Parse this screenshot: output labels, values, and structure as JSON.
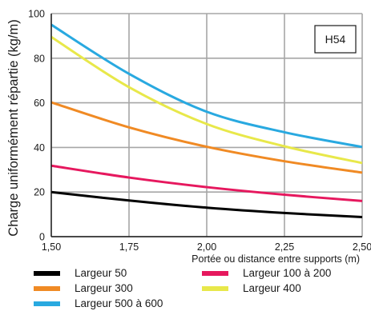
{
  "chart_data": {
    "type": "line",
    "title": "",
    "annotation": "H54",
    "xlabel": "Portée ou distance entre supports (m)",
    "ylabel": "Charge uniformément répartie (kg/m)",
    "xlim": [
      1.5,
      2.5
    ],
    "ylim": [
      0,
      100
    ],
    "xticks": [
      1.5,
      1.75,
      2.0,
      2.25,
      2.5
    ],
    "xtick_labels": [
      "1,50",
      "1,75",
      "2,00",
      "2,25",
      "2,50"
    ],
    "yticks": [
      0,
      20,
      40,
      60,
      80,
      100
    ],
    "ytick_labels": [
      "0",
      "20",
      "40",
      "60",
      "80",
      "100"
    ],
    "grid": true,
    "legend_position": "bottom",
    "x": [
      1.5,
      1.75,
      2.0,
      2.25,
      2.5
    ],
    "series": [
      {
        "name": "Largeur 50",
        "color": "#000000",
        "values": [
          20,
          16.2,
          13,
          10.6,
          8.8
        ]
      },
      {
        "name": "Largeur 100 à 200",
        "color": "#e6185e",
        "values": [
          31.8,
          26.5,
          22.2,
          18.8,
          16
        ]
      },
      {
        "name": "Largeur 300",
        "color": "#f08a24",
        "values": [
          60.2,
          49,
          40.3,
          33.8,
          28.7
        ]
      },
      {
        "name": "Largeur 400",
        "color": "#e8e84a",
        "values": [
          89.5,
          67,
          50.5,
          40.5,
          33
        ]
      },
      {
        "name": "Largeur 500 à 600",
        "color": "#29a9e0",
        "values": [
          95,
          73,
          56,
          46.8,
          40.2
        ]
      }
    ],
    "legend_order": [
      0,
      1,
      2,
      3,
      4
    ]
  }
}
